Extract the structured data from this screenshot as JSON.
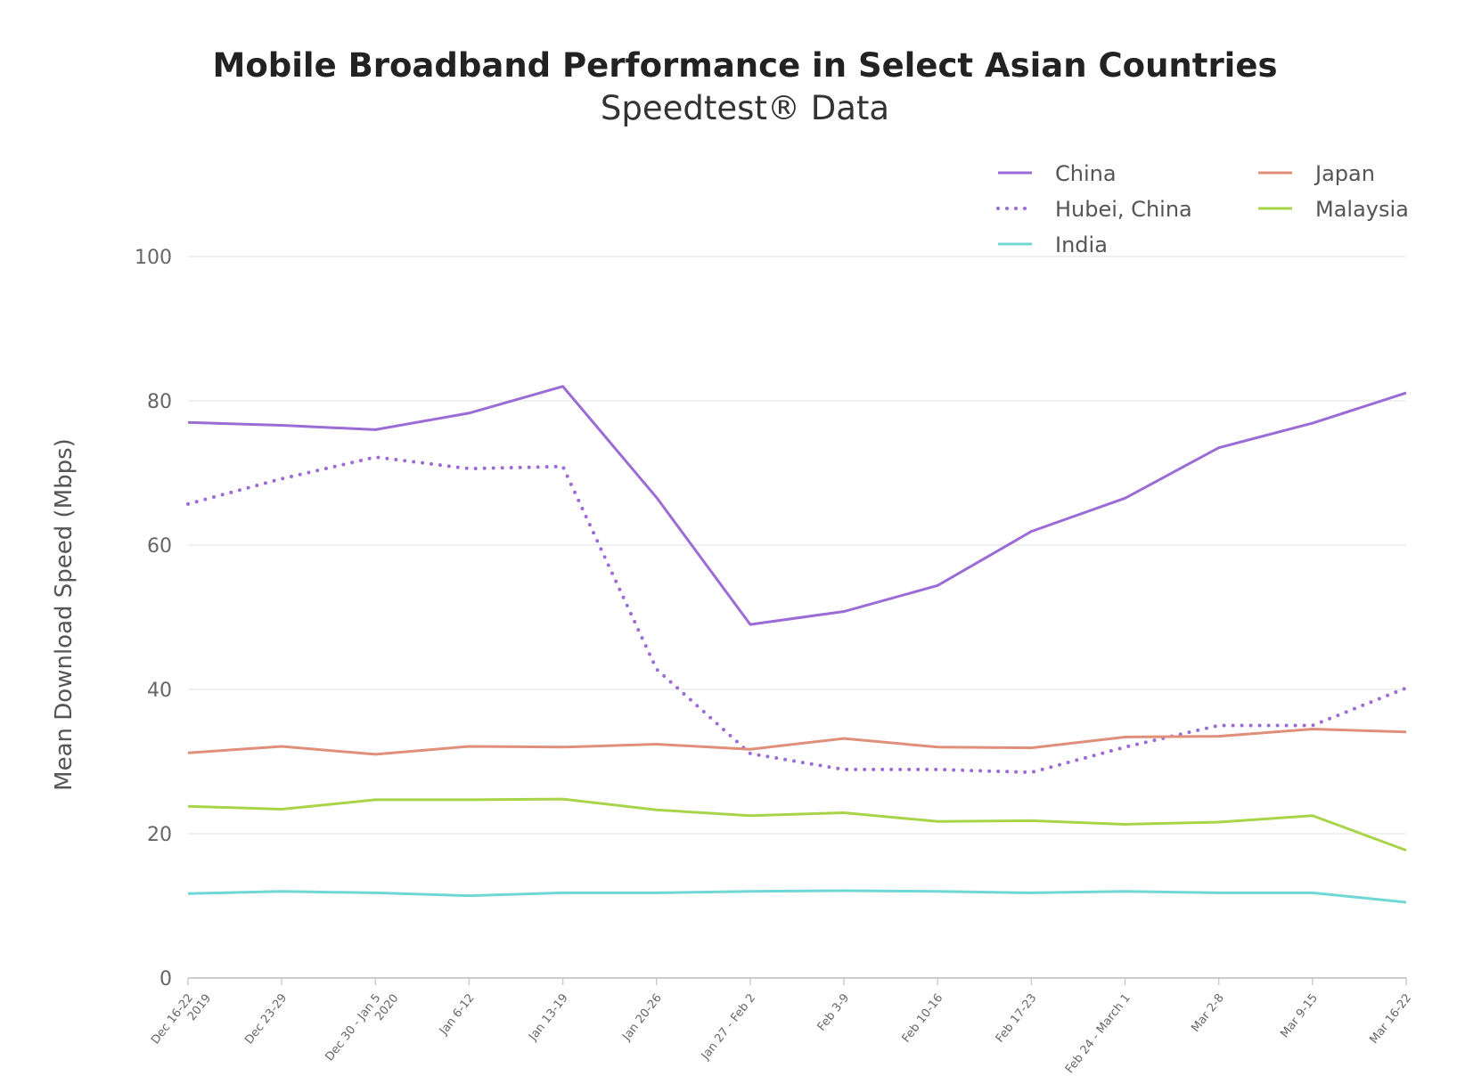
{
  "chart_data": {
    "type": "line",
    "title": "Mobile Broadband Performance in Select Asian Countries",
    "subtitle": "Speedtest® Data",
    "xlabel": "",
    "ylabel": "Mean Download Speed (Mbps)",
    "ylim": [
      0,
      100
    ],
    "yticks": [
      0,
      20,
      40,
      60,
      80,
      100
    ],
    "grid": true,
    "legend_position": "top-right",
    "categories": [
      [
        "Dec 16-22",
        "2019"
      ],
      [
        "Dec 23-29"
      ],
      [
        "Dec 30 - Jan 5",
        "2020"
      ],
      [
        "Jan 6-12"
      ],
      [
        "Jan 13-19"
      ],
      [
        "Jan 20-26"
      ],
      [
        "Jan 27 - Feb 2"
      ],
      [
        "Feb 3-9"
      ],
      [
        "Feb 10-16"
      ],
      [
        "Feb 17-23"
      ],
      [
        "Feb 24 - March 1"
      ],
      [
        "Mar 2-8"
      ],
      [
        "Mar 9-15"
      ],
      [
        "Mar 16-22"
      ]
    ],
    "series": [
      {
        "name": "China",
        "color": "#9b6bd6",
        "style": "solid",
        "values": [
          77,
          76.6,
          76,
          78.3,
          82,
          66.6,
          49,
          50.8,
          54.4,
          61.9,
          66.5,
          73.5,
          76.9,
          81.1
        ]
      },
      {
        "name": "Hubei, China",
        "color": "#9b6bd6",
        "style": "dotted",
        "values": [
          65.7,
          69.2,
          72.2,
          70.6,
          70.9,
          42.8,
          31.1,
          28.9,
          28.9,
          28.5,
          32,
          35,
          35,
          40.2
        ]
      },
      {
        "name": "India",
        "color": "#6fd8d6",
        "style": "solid",
        "values": [
          11.7,
          12,
          11.8,
          11.4,
          11.8,
          11.8,
          12,
          12.1,
          12,
          11.8,
          12,
          11.8,
          11.8,
          10.5
        ]
      },
      {
        "name": "Japan",
        "color": "#e0907a",
        "style": "solid",
        "values": [
          31.2,
          32.1,
          31,
          32.1,
          32,
          32.4,
          31.7,
          33.2,
          32,
          31.9,
          33.4,
          33.5,
          34.5,
          34.1
        ]
      },
      {
        "name": "Malaysia",
        "color": "#a8d44a",
        "style": "solid",
        "values": [
          23.8,
          23.4,
          24.7,
          24.7,
          24.8,
          23.3,
          22.5,
          22.9,
          21.7,
          21.8,
          21.3,
          21.6,
          22.5,
          17.7
        ]
      }
    ]
  }
}
